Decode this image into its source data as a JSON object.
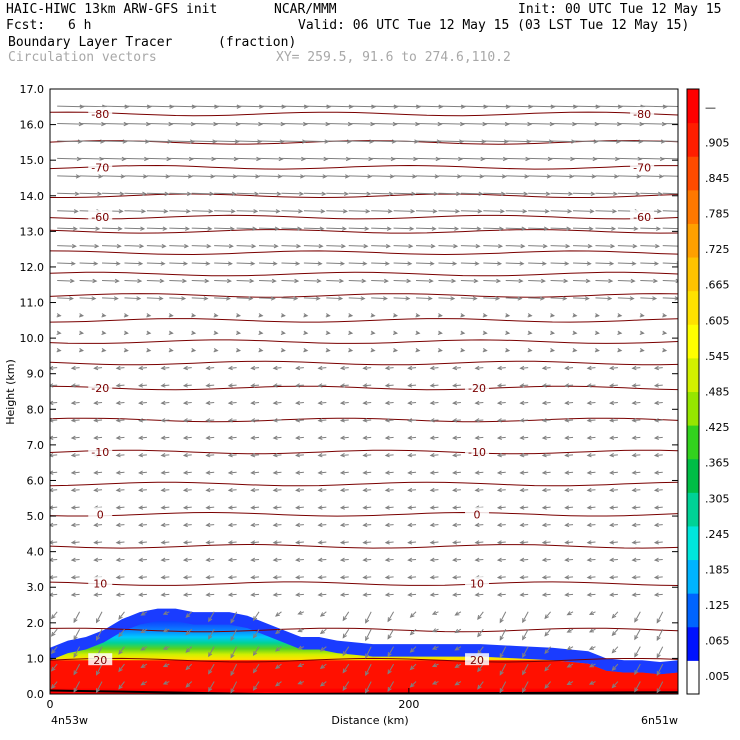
{
  "header": {
    "model": "HAIC-HIWC 13km ARW-GFS init",
    "org": "NCAR/MMM",
    "init": "Init: 00 UTC Tue 12 May 15",
    "fcst_label": "Fcst:",
    "fcst_value": "6 h",
    "valid": "Valid: 06 UTC Tue 12 May 15 (03 LST Tue 12 May 15)",
    "field": "Boundary Layer Tracer",
    "units": "(fraction)",
    "vectors": "Circulation vectors",
    "xy": "XY= 259.5, 91.6 to 274.6,110.2"
  },
  "chart_data": {
    "type": "heatmap",
    "ylabel": "Height (km)",
    "xlabel": "Distance (km)",
    "x_left_label": "4n53w",
    "x_right_label": "6n51w",
    "x_ticks": [
      "0",
      "200"
    ],
    "x_tick_values": [
      0,
      200
    ],
    "xlim": [
      0,
      350
    ],
    "ylim": [
      0,
      17
    ],
    "y_ticks": [
      "0.0",
      "1.0",
      "2.0",
      "3.0",
      "4.0",
      "5.0",
      "6.0",
      "7.0",
      "8.0",
      "9.0",
      "10.0",
      "11.0",
      "12.0",
      "13.0",
      "14.0",
      "15.0",
      "16.0",
      "17.0"
    ],
    "colorbar_labels": [
      ".005",
      ".065",
      ".125",
      ".185",
      ".245",
      ".305",
      ".365",
      ".425",
      ".485",
      ".545",
      ".605",
      ".665",
      ".725",
      ".785",
      ".845",
      ".905",
      "—"
    ],
    "colorbar_colors": [
      "#ffffff",
      "#0012ff",
      "#0064ff",
      "#00b4ff",
      "#00e6dc",
      "#00d296",
      "#00be46",
      "#32d21e",
      "#96e600",
      "#d2f000",
      "#ffff00",
      "#ffe100",
      "#ffc300",
      "#ffa000",
      "#ff7800",
      "#ff4b00",
      "#ff1e00",
      "#ff0000"
    ],
    "tracer_profile": {
      "x": [
        0,
        10,
        20,
        30,
        40,
        50,
        60,
        70,
        80,
        90,
        100,
        110,
        120,
        130,
        140,
        150,
        160,
        170,
        180,
        200,
        220,
        240,
        260,
        280,
        300,
        310,
        320,
        330,
        340,
        350
      ],
      "top": [
        1.3,
        1.5,
        1.6,
        1.8,
        2.1,
        2.3,
        2.4,
        2.4,
        2.3,
        2.3,
        2.3,
        2.2,
        2.0,
        1.8,
        1.6,
        1.6,
        1.5,
        1.45,
        1.4,
        1.4,
        1.4,
        1.4,
        1.35,
        1.3,
        1.2,
        1.0,
        0.95,
        0.95,
        0.9,
        0.95
      ]
    },
    "temperature_contours": [
      {
        "label": "-80",
        "y": 16.3
      },
      {
        "label": "-70",
        "y": 14.8
      },
      {
        "label": "-60",
        "y": 13.4
      },
      {
        "label": "-20",
        "y": 8.6
      },
      {
        "label": "-10",
        "y": 6.8
      },
      {
        "label": "0",
        "y": 5.05
      },
      {
        "label": "10",
        "y": 3.1
      },
      {
        "label": "20",
        "y": 0.95
      }
    ],
    "contour_level_y": [
      0.95,
      1.8,
      3.1,
      4.15,
      5.05,
      5.9,
      6.8,
      7.7,
      8.6,
      9.3,
      9.9,
      10.5,
      11.2,
      11.8,
      12.4,
      13.0,
      13.4,
      14.0,
      14.8,
      15.5,
      16.3
    ]
  }
}
